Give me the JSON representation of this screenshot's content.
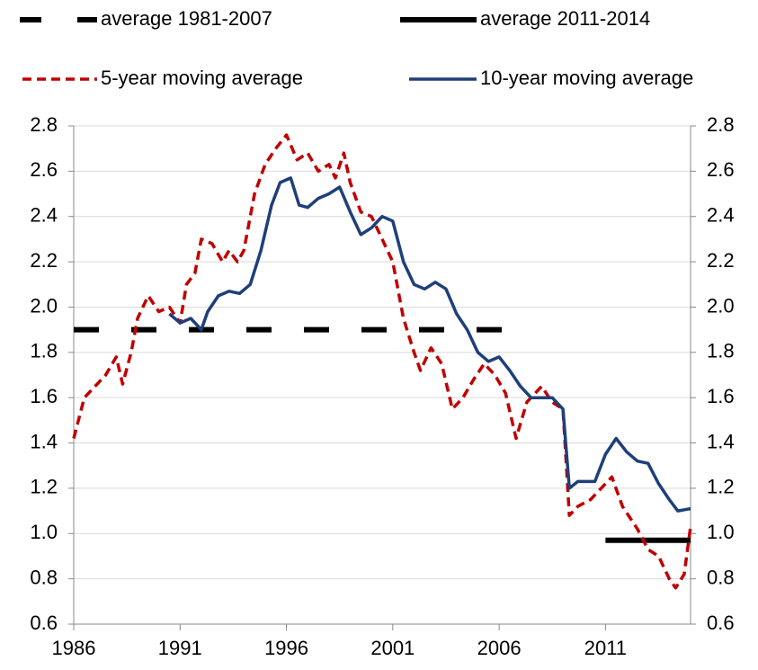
{
  "chart_data": {
    "type": "line",
    "xlim": [
      1986,
      2015
    ],
    "xticks": [
      1986,
      1991,
      1996,
      2001,
      2006,
      2011
    ],
    "ylim": [
      0.6,
      2.8
    ],
    "yticks": [
      0.6,
      0.8,
      {
        "value": 1,
        "label": "1.0"
      },
      1.2,
      1.4,
      1.6,
      1.8,
      {
        "value": 2,
        "label": "2.0"
      },
      2.2,
      2.4,
      2.6,
      2.8
    ],
    "y2lim": [
      0.6,
      2.8
    ],
    "y2ticks": [
      0.6,
      0.8,
      {
        "value": 1,
        "label": "1.0"
      },
      1.2,
      1.4,
      1.6,
      1.8,
      {
        "value": 2,
        "label": "2.0"
      },
      2.2,
      2.4,
      2.6,
      2.8
    ],
    "grid": true,
    "series": [
      {
        "name": "average 1981-2007",
        "color": "#000000",
        "line_style": "dashed",
        "x": [
          1986,
          2006.5
        ],
        "values": [
          1.9,
          1.9
        ]
      },
      {
        "name": "average 2011-2014",
        "color": "#000000",
        "line_style": "solid",
        "x": [
          2011,
          2015
        ],
        "values": [
          0.97,
          0.97
        ]
      },
      {
        "name": "5-year moving average",
        "color": "#c00000",
        "line_style": "dashed",
        "x": [
          1986,
          1986.5,
          1987,
          1987.5,
          1988,
          1988.3,
          1988.7,
          1989,
          1989.5,
          1990,
          1990.5,
          1991,
          1991.3,
          1991.7,
          1992,
          1992.5,
          1993,
          1993.3,
          1993.7,
          1994,
          1994.5,
          1995,
          1995.5,
          1996,
          1996.5,
          1997,
          1997.5,
          1998,
          1998.3,
          1998.7,
          1999,
          1999.5,
          2000,
          2000.5,
          2001,
          2001.5,
          2002,
          2002.3,
          2002.8,
          2003.3,
          2003.8,
          2004.3,
          2004.8,
          2005.3,
          2005.8,
          2006.3,
          2006.8,
          2007.3,
          2008,
          2008.5,
          2009,
          2009.3,
          2009.7,
          2010.3,
          2010.8,
          2011.3,
          2011.8,
          2012.5,
          2013,
          2013.5,
          2014,
          2014.3,
          2014.7,
          2015
        ],
        "values": [
          1.42,
          1.6,
          1.65,
          1.7,
          1.78,
          1.66,
          1.8,
          1.95,
          2.05,
          1.98,
          2.0,
          1.93,
          2.1,
          2.15,
          2.3,
          2.28,
          2.2,
          2.25,
          2.2,
          2.25,
          2.5,
          2.63,
          2.7,
          2.76,
          2.65,
          2.68,
          2.6,
          2.63,
          2.57,
          2.68,
          2.55,
          2.42,
          2.4,
          2.3,
          2.2,
          1.95,
          1.8,
          1.72,
          1.82,
          1.75,
          1.55,
          1.6,
          1.68,
          1.75,
          1.7,
          1.62,
          1.42,
          1.58,
          1.65,
          1.58,
          1.55,
          1.08,
          1.12,
          1.15,
          1.2,
          1.25,
          1.12,
          1.02,
          0.93,
          0.9,
          0.8,
          0.76,
          0.82,
          1.03
        ]
      },
      {
        "name": "10-year moving average",
        "color": "#1f3f7a",
        "line_style": "solid",
        "x": [
          1990.5,
          1991,
          1991.5,
          1992,
          1992.3,
          1992.8,
          1993.3,
          1993.8,
          1994.3,
          1994.8,
          1995.3,
          1995.7,
          1996.2,
          1996.6,
          1997,
          1997.5,
          1998,
          1998.5,
          1999,
          1999.5,
          2000,
          2000.5,
          2001,
          2001.5,
          2002,
          2002.5,
          2003,
          2003.5,
          2004,
          2004.5,
          2005,
          2005.5,
          2006,
          2006.5,
          2007,
          2007.5,
          2008,
          2008.5,
          2009,
          2009.3,
          2009.7,
          2010.5,
          2011,
          2011.5,
          2012,
          2012.5,
          2013,
          2013.5,
          2014,
          2014.4,
          2015
        ],
        "values": [
          1.97,
          1.93,
          1.95,
          1.9,
          1.98,
          2.05,
          2.07,
          2.06,
          2.1,
          2.25,
          2.45,
          2.55,
          2.57,
          2.45,
          2.44,
          2.48,
          2.5,
          2.53,
          2.42,
          2.32,
          2.35,
          2.4,
          2.38,
          2.2,
          2.1,
          2.08,
          2.11,
          2.08,
          1.97,
          1.9,
          1.8,
          1.76,
          1.78,
          1.72,
          1.65,
          1.6,
          1.6,
          1.6,
          1.55,
          1.2,
          1.23,
          1.23,
          1.35,
          1.42,
          1.36,
          1.32,
          1.31,
          1.22,
          1.15,
          1.1,
          1.11
        ]
      }
    ]
  }
}
